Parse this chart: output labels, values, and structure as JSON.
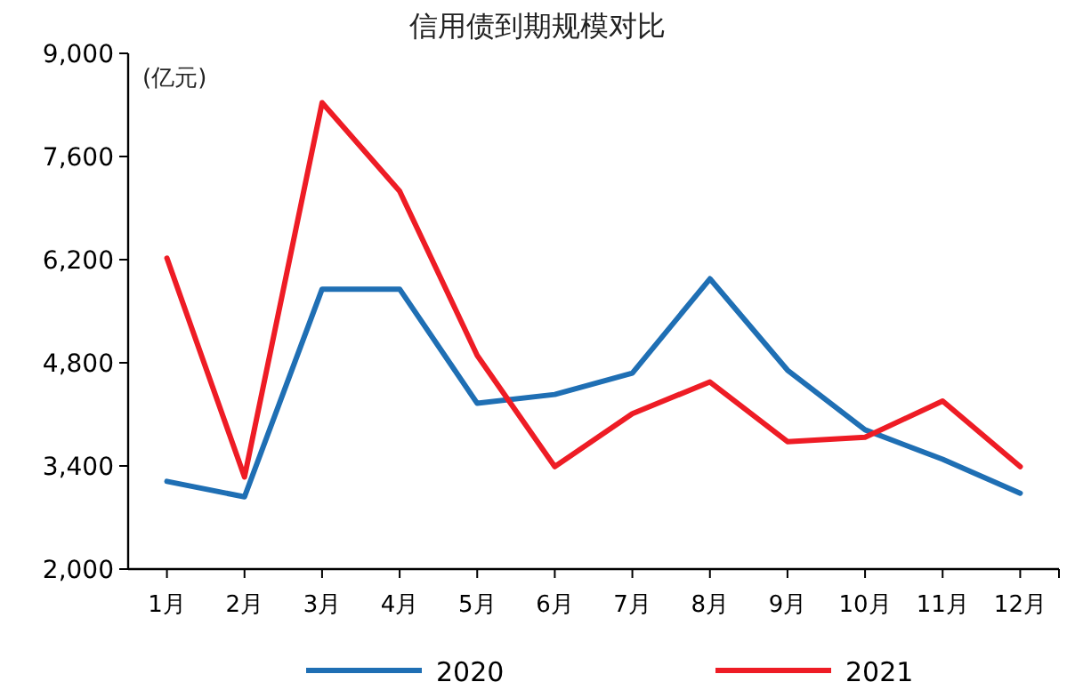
{
  "chart_data": {
    "type": "line",
    "title": "信用债到期规模对比",
    "ylabel": "(亿元)",
    "categories": [
      "1月",
      "2月",
      "3月",
      "4月",
      "5月",
      "6月",
      "7月",
      "8月",
      "9月",
      "10月",
      "11月",
      "12月"
    ],
    "series": [
      {
        "name": "2020",
        "color": "#1f6fb4",
        "values": [
          3190,
          2980,
          5800,
          5800,
          4250,
          4370,
          4660,
          5940,
          4700,
          3890,
          3490,
          3030
        ]
      },
      {
        "name": "2021",
        "color": "#ee1c25",
        "values": [
          6220,
          3250,
          8330,
          7130,
          4900,
          3390,
          4110,
          4540,
          3730,
          3790,
          4280,
          3390
        ]
      }
    ],
    "ylim": [
      2000,
      9000
    ],
    "yticks": [
      {
        "value": 2000,
        "label": "2,000"
      },
      {
        "value": 3400,
        "label": "3,400"
      },
      {
        "value": 4800,
        "label": "4,800"
      },
      {
        "value": 6200,
        "label": "6,200"
      },
      {
        "value": 7600,
        "label": "7,600"
      },
      {
        "value": 9000,
        "label": "9,000"
      }
    ],
    "grid": false,
    "legend": "bottom",
    "line_style": "solid",
    "marker": "none"
  }
}
